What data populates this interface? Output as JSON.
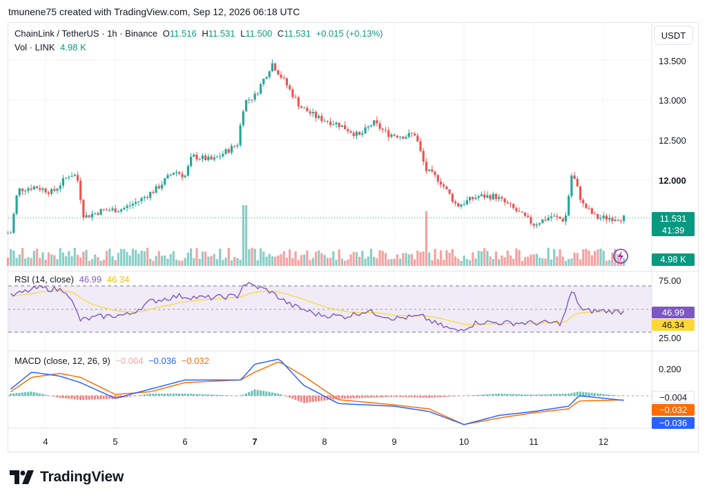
{
  "caption": "tmunene75 created with TradingView.com, Sep 12, 2026 06:18 UTC",
  "header": {
    "symbol": "ChainLink / TetherUS · 1h · Binance",
    "o_label": "O",
    "o_value": "11.516",
    "h_label": "H",
    "h_value": "11.531",
    "l_label": "L",
    "l_value": "11.500",
    "c_label": "C",
    "c_value": "11.531",
    "change": "+0.015 (+0.13%)",
    "vol_label": "Vol · LINK",
    "vol_value": "4.98 K"
  },
  "currency_button": "USDT",
  "price_tag": {
    "price": "11.531",
    "countdown": "41:39",
    "color": "#089981"
  },
  "volume_tag": "4.98 K",
  "rsi": {
    "label": "RSI (14, close)",
    "value": "46.99",
    "ma_value": "46.34",
    "line_color": "#7e57c2",
    "ma_color": "#fdd835",
    "upper": "75.00",
    "lower": "25.00"
  },
  "macd": {
    "label": "MACD (close, 12, 26, 9)",
    "hist_value": "−0.004",
    "macd_value": "−0.036",
    "signal_value": "−0.032",
    "macd_color": "#2962ff",
    "signal_color": "#ff6d00",
    "hist_color": "#f7a9a7",
    "tick": "0.200"
  },
  "price_axis": [
    "13.500",
    "13.000",
    "12.500",
    "12.000"
  ],
  "x_axis": [
    "4",
    "5",
    "6",
    "7",
    "8",
    "9",
    "10",
    "11",
    "12"
  ],
  "colors": {
    "up": "#26a69a",
    "down": "#ef5350"
  },
  "logo_text": "TradingView",
  "chart_data": {
    "type": "candlestick",
    "symbol": "ChainLink / TetherUS",
    "interval": "1h",
    "x_ticks": [
      "4",
      "5",
      "6",
      "7",
      "8",
      "9",
      "10",
      "11",
      "12"
    ],
    "close_path": [
      {
        "day": 3.5,
        "close": 11.34
      },
      {
        "day": 3.6,
        "close": 11.88
      },
      {
        "day": 3.85,
        "close": 11.92
      },
      {
        "day": 4.1,
        "close": 11.85
      },
      {
        "day": 4.35,
        "close": 12.08
      },
      {
        "day": 4.45,
        "close": 12.05
      },
      {
        "day": 4.55,
        "close": 11.54
      },
      {
        "day": 4.8,
        "close": 11.62
      },
      {
        "day": 5.1,
        "close": 11.64
      },
      {
        "day": 5.35,
        "close": 11.75
      },
      {
        "day": 5.6,
        "close": 11.9
      },
      {
        "day": 5.85,
        "close": 12.12
      },
      {
        "day": 6.0,
        "close": 12.05
      },
      {
        "day": 6.1,
        "close": 12.3
      },
      {
        "day": 6.4,
        "close": 12.25
      },
      {
        "day": 6.75,
        "close": 12.45
      },
      {
        "day": 6.85,
        "close": 12.98
      },
      {
        "day": 7.0,
        "close": 13.05
      },
      {
        "day": 7.25,
        "close": 13.46
      },
      {
        "day": 7.45,
        "close": 13.2
      },
      {
        "day": 7.65,
        "close": 12.92
      },
      {
        "day": 7.9,
        "close": 12.78
      },
      {
        "day": 8.2,
        "close": 12.7
      },
      {
        "day": 8.5,
        "close": 12.55
      },
      {
        "day": 8.7,
        "close": 12.72
      },
      {
        "day": 8.9,
        "close": 12.58
      },
      {
        "day": 9.15,
        "close": 12.55
      },
      {
        "day": 9.3,
        "close": 12.58
      },
      {
        "day": 9.45,
        "close": 12.13
      },
      {
        "day": 9.65,
        "close": 12.0
      },
      {
        "day": 9.9,
        "close": 11.68
      },
      {
        "day": 10.2,
        "close": 11.8
      },
      {
        "day": 10.45,
        "close": 11.8
      },
      {
        "day": 10.7,
        "close": 11.65
      },
      {
        "day": 11.0,
        "close": 11.45
      },
      {
        "day": 11.25,
        "close": 11.55
      },
      {
        "day": 11.45,
        "close": 11.5
      },
      {
        "day": 11.55,
        "close": 12.1
      },
      {
        "day": 11.7,
        "close": 11.7
      },
      {
        "day": 11.9,
        "close": 11.53
      },
      {
        "day": 12.3,
        "close": 11.531
      }
    ],
    "volume_spikes": [
      {
        "day": 6.85,
        "volume": 1.0
      },
      {
        "day": 9.45,
        "volume": 0.9
      }
    ],
    "rsi_path": [
      {
        "day": 3.5,
        "rsi": 64
      },
      {
        "day": 3.9,
        "rsi": 73
      },
      {
        "day": 4.3,
        "rsi": 70
      },
      {
        "day": 4.5,
        "rsi": 38
      },
      {
        "day": 4.8,
        "rsi": 42
      },
      {
        "day": 5.2,
        "rsi": 44
      },
      {
        "day": 5.5,
        "rsi": 58
      },
      {
        "day": 5.9,
        "rsi": 64
      },
      {
        "day": 6.3,
        "rsi": 62
      },
      {
        "day": 6.75,
        "rsi": 64
      },
      {
        "day": 6.85,
        "rsi": 78
      },
      {
        "day": 7.2,
        "rsi": 70
      },
      {
        "day": 7.5,
        "rsi": 55
      },
      {
        "day": 7.9,
        "rsi": 44
      },
      {
        "day": 8.3,
        "rsi": 42
      },
      {
        "day": 8.6,
        "rsi": 48
      },
      {
        "day": 9.0,
        "rsi": 40
      },
      {
        "day": 9.4,
        "rsi": 42
      },
      {
        "day": 9.6,
        "rsi": 34
      },
      {
        "day": 9.9,
        "rsi": 26
      },
      {
        "day": 10.2,
        "rsi": 36
      },
      {
        "day": 10.6,
        "rsi": 35
      },
      {
        "day": 11.0,
        "rsi": 35
      },
      {
        "day": 11.4,
        "rsi": 35
      },
      {
        "day": 11.55,
        "rsi": 70
      },
      {
        "day": 11.7,
        "rsi": 48
      },
      {
        "day": 12.0,
        "rsi": 48
      },
      {
        "day": 12.3,
        "rsi": 46.99
      }
    ],
    "macd_path": [
      {
        "day": 3.5,
        "macd": 0.05,
        "signal": 0.03
      },
      {
        "day": 3.8,
        "macd": 0.18,
        "signal": 0.14
      },
      {
        "day": 4.2,
        "macd": 0.15,
        "signal": 0.17
      },
      {
        "day": 4.5,
        "macd": 0.1,
        "signal": 0.14
      },
      {
        "day": 5.0,
        "macd": -0.02,
        "signal": 0.01
      },
      {
        "day": 5.5,
        "macd": 0.05,
        "signal": 0.03
      },
      {
        "day": 6.0,
        "macd": 0.12,
        "signal": 0.1
      },
      {
        "day": 6.8,
        "macd": 0.12,
        "signal": 0.12
      },
      {
        "day": 7.0,
        "macd": 0.24,
        "signal": 0.18
      },
      {
        "day": 7.35,
        "macd": 0.28,
        "signal": 0.26
      },
      {
        "day": 7.7,
        "macd": 0.08,
        "signal": 0.15
      },
      {
        "day": 8.2,
        "macd": -0.06,
        "signal": -0.03
      },
      {
        "day": 9.0,
        "macd": -0.08,
        "signal": -0.07
      },
      {
        "day": 9.5,
        "macd": -0.12,
        "signal": -0.1
      },
      {
        "day": 10.0,
        "macd": -0.22,
        "signal": -0.22
      },
      {
        "day": 10.5,
        "macd": -0.15,
        "signal": -0.17
      },
      {
        "day": 11.0,
        "macd": -0.12,
        "signal": -0.13
      },
      {
        "day": 11.5,
        "macd": -0.08,
        "signal": -0.1
      },
      {
        "day": 11.65,
        "macd": 0.0,
        "signal": -0.04
      },
      {
        "day": 12.3,
        "macd": -0.036,
        "signal": -0.032
      }
    ]
  }
}
